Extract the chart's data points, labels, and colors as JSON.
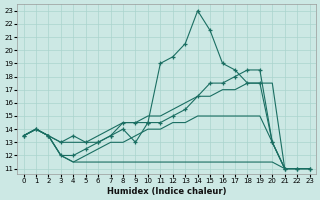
{
  "xlabel": "Humidex (Indice chaleur)",
  "bg_color": "#cce8e4",
  "grid_color": "#aad4ce",
  "line_color": "#1a6e62",
  "xlim": [
    -0.5,
    23.5
  ],
  "ylim": [
    10.6,
    23.5
  ],
  "xticks": [
    0,
    1,
    2,
    3,
    4,
    5,
    6,
    7,
    8,
    9,
    10,
    11,
    12,
    13,
    14,
    15,
    16,
    17,
    18,
    19,
    20,
    21,
    22,
    23
  ],
  "yticks": [
    11,
    12,
    13,
    14,
    15,
    16,
    17,
    18,
    19,
    20,
    21,
    22,
    23
  ],
  "line_stair_x": [
    0,
    1,
    2,
    3,
    4,
    5,
    6,
    7,
    8,
    9,
    10,
    11,
    12,
    13,
    14,
    15,
    16,
    17,
    18,
    19,
    20,
    21,
    22,
    23
  ],
  "line_stair_y": [
    13.5,
    14.0,
    13.5,
    12.0,
    11.5,
    11.5,
    11.5,
    11.5,
    11.5,
    11.5,
    11.5,
    11.5,
    11.5,
    11.5,
    11.5,
    11.5,
    11.5,
    11.5,
    11.5,
    11.5,
    11.5,
    11.0,
    11.0,
    11.0
  ],
  "line_diag_x": [
    0,
    1,
    2,
    3,
    4,
    5,
    6,
    7,
    8,
    9,
    10,
    11,
    12,
    13,
    14,
    15,
    16,
    17,
    18,
    19,
    20,
    21,
    22,
    23
  ],
  "line_diag_y": [
    13.5,
    14.0,
    13.5,
    13.0,
    13.0,
    13.0,
    13.5,
    14.0,
    14.5,
    14.5,
    15.0,
    15.0,
    15.5,
    16.0,
    16.5,
    16.5,
    17.0,
    17.0,
    17.5,
    17.5,
    17.5,
    11.0,
    11.0,
    11.0
  ],
  "line_mid_x": [
    0,
    1,
    2,
    3,
    4,
    5,
    6,
    7,
    8,
    9,
    10,
    11,
    12,
    13,
    14,
    15,
    16,
    17,
    18,
    19,
    20,
    21,
    22,
    23
  ],
  "line_mid_y": [
    13.5,
    14.0,
    13.5,
    13.0,
    13.5,
    13.0,
    13.0,
    13.5,
    14.0,
    13.0,
    14.5,
    14.5,
    15.0,
    15.5,
    16.5,
    17.5,
    17.5,
    18.0,
    18.5,
    18.5,
    13.0,
    11.0,
    11.0,
    11.0
  ],
  "line_peak_x": [
    0,
    1,
    2,
    3,
    4,
    5,
    6,
    7,
    8,
    9,
    10,
    11,
    12,
    13,
    14,
    15,
    16,
    17,
    18,
    19,
    20,
    21,
    22,
    23
  ],
  "line_peak_y": [
    13.5,
    14.0,
    13.5,
    12.0,
    12.0,
    12.5,
    13.0,
    13.5,
    14.5,
    14.5,
    14.5,
    19.0,
    19.5,
    20.5,
    23.0,
    21.5,
    19.0,
    18.5,
    17.5,
    17.5,
    13.0,
    11.0,
    11.0,
    11.0
  ],
  "line_bot2_x": [
    0,
    1,
    2,
    3,
    4,
    5,
    6,
    7,
    8,
    9,
    10,
    11,
    12,
    13,
    14,
    15,
    16,
    17,
    18,
    19,
    20,
    21,
    22,
    23
  ],
  "line_bot2_y": [
    13.5,
    14.0,
    13.5,
    12.0,
    11.5,
    12.0,
    12.5,
    13.0,
    13.0,
    13.5,
    14.0,
    14.0,
    14.5,
    14.5,
    15.0,
    15.0,
    15.0,
    15.0,
    15.0,
    15.0,
    13.0,
    11.0,
    11.0,
    11.0
  ]
}
